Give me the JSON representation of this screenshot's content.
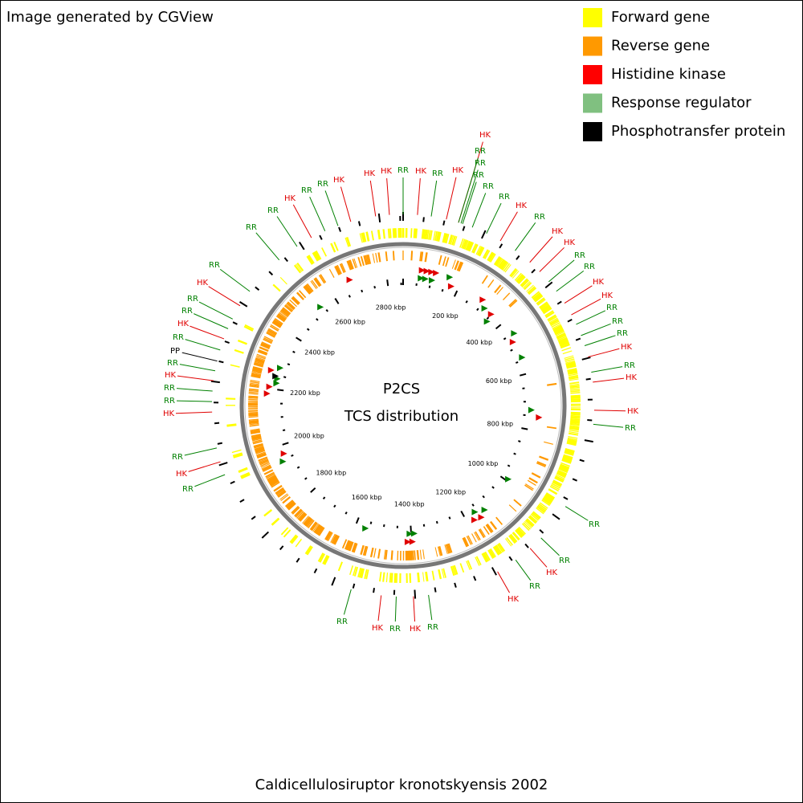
{
  "header": {
    "text": "Image generated by CGView"
  },
  "legend": [
    {
      "label": "Forward gene",
      "color": "#ffff00"
    },
    {
      "label": "Reverse gene",
      "color": "#ff9900"
    },
    {
      "label": "Histidine kinase",
      "color": "#ff0000"
    },
    {
      "label": "Response regulator",
      "color": "#80c080"
    },
    {
      "label": "Phosphotransfer protein",
      "color": "#000000"
    }
  ],
  "map": {
    "title": "P2CS",
    "subtitle": "TCS distribution",
    "tick_labels": [
      "200 kbp",
      "400 kbp",
      "600 kbp",
      "800 kbp",
      "1000 kbp",
      "1200 kbp",
      "1400 kbp",
      "1600 kbp",
      "1800 kbp",
      "2000 kbp",
      "2200 kbp",
      "2400 kbp",
      "2600 kbp",
      "2800 kbp"
    ],
    "feature_labels": [
      {
        "text": "HK",
        "color": "#e00000"
      },
      {
        "text": "RR",
        "color": "#008000"
      },
      {
        "text": "RR",
        "color": "#008000"
      },
      {
        "text": "HK",
        "color": "#e00000"
      },
      {
        "text": "RR",
        "color": "#008000"
      },
      {
        "text": "RR",
        "color": "#008000"
      },
      {
        "text": "HK",
        "color": "#e00000"
      },
      {
        "text": "RR",
        "color": "#008000"
      },
      {
        "text": "HK",
        "color": "#e00000"
      },
      {
        "text": "HK",
        "color": "#e00000"
      },
      {
        "text": "RR",
        "color": "#008000"
      },
      {
        "text": "RR",
        "color": "#008000"
      },
      {
        "text": "HK",
        "color": "#e00000"
      },
      {
        "text": "RR",
        "color": "#008000"
      },
      {
        "text": "RR",
        "color": "#008000"
      },
      {
        "text": "HK",
        "color": "#e00000"
      },
      {
        "text": "RR",
        "color": "#008000"
      },
      {
        "text": "RR",
        "color": "#008000"
      },
      {
        "text": "HK",
        "color": "#e00000"
      },
      {
        "text": "RR",
        "color": "#008000"
      },
      {
        "text": "HK",
        "color": "#e00000"
      },
      {
        "text": "HK",
        "color": "#e00000"
      },
      {
        "text": "RR",
        "color": "#008000"
      },
      {
        "text": "RR",
        "color": "#008000"
      },
      {
        "text": "HK",
        "color": "#e00000"
      },
      {
        "text": "HK",
        "color": "#e00000"
      },
      {
        "text": "RR",
        "color": "#008000"
      },
      {
        "text": "RR",
        "color": "#008000"
      },
      {
        "text": "RR",
        "color": "#008000"
      },
      {
        "text": "HK",
        "color": "#e00000"
      },
      {
        "text": "RR",
        "color": "#008000"
      },
      {
        "text": "HK",
        "color": "#e00000"
      },
      {
        "text": "HK",
        "color": "#e00000"
      },
      {
        "text": "RR",
        "color": "#008000"
      },
      {
        "text": "RR",
        "color": "#008000"
      },
      {
        "text": "RR",
        "color": "#008000"
      },
      {
        "text": "HK",
        "color": "#e00000"
      },
      {
        "text": "RR",
        "color": "#008000"
      },
      {
        "text": "HK",
        "color": "#e00000"
      },
      {
        "text": "RR",
        "color": "#008000"
      },
      {
        "text": "HK",
        "color": "#e00000"
      },
      {
        "text": "RR",
        "color": "#008000"
      },
      {
        "text": "HK",
        "color": "#e00000"
      },
      {
        "text": "RR",
        "color": "#008000"
      },
      {
        "text": "RR",
        "color": "#008000"
      },
      {
        "text": "HK",
        "color": "#e00000"
      },
      {
        "text": "RR",
        "color": "#008000"
      },
      {
        "text": "HK",
        "color": "#e00000"
      },
      {
        "text": "RR",
        "color": "#008000"
      },
      {
        "text": "RR",
        "color": "#008000"
      },
      {
        "text": "HK",
        "color": "#e00000"
      },
      {
        "text": "RR",
        "color": "#008000"
      },
      {
        "text": "PP",
        "color": "#000000"
      },
      {
        "text": "RR",
        "color": "#008000"
      },
      {
        "text": "HK",
        "color": "#e00000"
      },
      {
        "text": "RR",
        "color": "#008000"
      },
      {
        "text": "RR",
        "color": "#008000"
      },
      {
        "text": "HK",
        "color": "#e00000"
      },
      {
        "text": "RR",
        "color": "#008000"
      }
    ]
  },
  "footer": {
    "text": "Caldicellulosiruptor kronotskyensis 2002"
  }
}
